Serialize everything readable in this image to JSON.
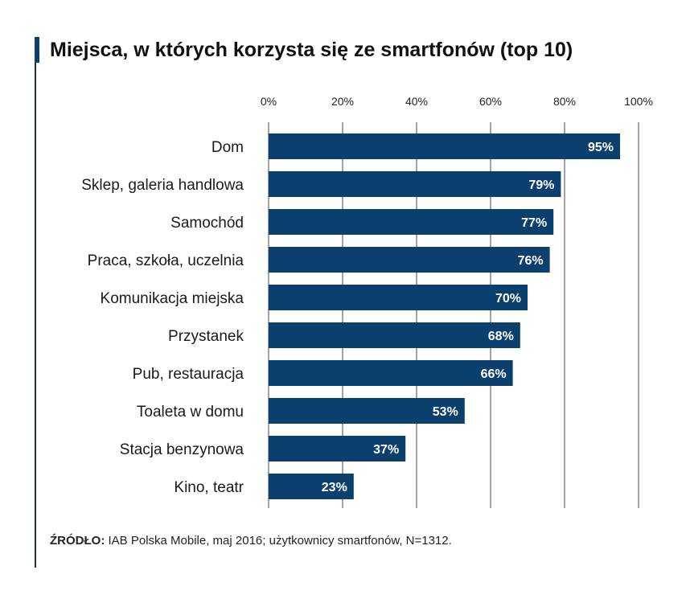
{
  "title": "Miejsca, w których korzysta się ze smartfonów (top 10)",
  "source": {
    "label": "ŹRÓDŁO:",
    "text": "IAB Polska Mobile, maj 2016; użytkownicy smartfonów, N=1312."
  },
  "colors": {
    "bar": "#0b3f6e",
    "grid": "#444444",
    "accent": "#0b3f6e"
  },
  "chart_data": {
    "type": "bar",
    "orientation": "horizontal",
    "title": "Miejsca, w których korzysta się ze smartfonów (top 10)",
    "categories": [
      "Dom",
      "Sklep, galeria handlowa",
      "Samochód",
      "Praca, szkoła, uczelnia",
      "Komunikacja miejska",
      "Przystanek",
      "Pub, restauracja",
      "Toaleta w domu",
      "Stacja benzynowa",
      "Kino, teatr"
    ],
    "values": [
      95,
      79,
      77,
      76,
      70,
      68,
      66,
      53,
      37,
      23
    ],
    "value_labels": [
      "95%",
      "79%",
      "77%",
      "76%",
      "70%",
      "68%",
      "66%",
      "53%",
      "37%",
      "23%"
    ],
    "xlim": [
      0,
      100
    ],
    "ticks": [
      0,
      20,
      40,
      60,
      80,
      100
    ],
    "tick_labels": [
      "0%",
      "20%",
      "40%",
      "60%",
      "80%",
      "100%"
    ],
    "grid": true,
    "legend": "none",
    "xlabel": "",
    "ylabel": ""
  }
}
